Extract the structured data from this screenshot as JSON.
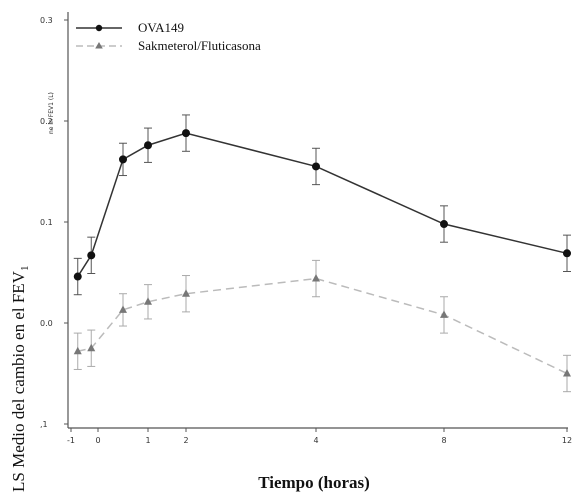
{
  "chart_data": {
    "type": "line",
    "title": "",
    "xlabel": "Tiempo (horas)",
    "ylabel": "LS Medio del cambio en el FEV",
    "ylabel_subscript": "1",
    "secondary_ylabel": "ne in FEV1 (L)",
    "x_ticks": [
      -1,
      0,
      1,
      2,
      4,
      8,
      12
    ],
    "x_tick_labels": [
      "-1",
      "0",
      "1",
      "2",
      "4",
      "8",
      "12"
    ],
    "y_ticks": [
      -0.1,
      0.0,
      0.1,
      0.2,
      0.3
    ],
    "y_tick_labels": [
      ",1",
      "0.0",
      "0.1",
      "0.2",
      "0.3"
    ],
    "xlim": [
      -1,
      12
    ],
    "ylim": [
      -0.1,
      0.3
    ],
    "grid": false,
    "legend_position": "top-left",
    "series": [
      {
        "name": "OVA149",
        "color": "#333333",
        "marker": "circle",
        "line_style": "solid",
        "x": [
          -0.75,
          -0.25,
          0.5,
          1,
          2,
          4,
          8,
          12
        ],
        "y": [
          0.046,
          0.067,
          0.162,
          0.176,
          0.188,
          0.155,
          0.098,
          0.069
        ],
        "err": [
          0.018,
          0.018,
          0.016,
          0.017,
          0.018,
          0.018,
          0.018,
          0.018
        ]
      },
      {
        "name": "Sakmeterol/Fluticasona",
        "color": "#bbbbbb",
        "marker_color": "#777777",
        "marker": "triangle",
        "line_style": "dashed",
        "x": [
          -0.75,
          -0.25,
          0.5,
          1,
          2,
          4,
          8,
          12
        ],
        "y": [
          -0.028,
          -0.025,
          0.013,
          0.021,
          0.029,
          0.044,
          0.008,
          -0.05
        ],
        "err": [
          0.018,
          0.018,
          0.016,
          0.017,
          0.018,
          0.018,
          0.018,
          0.018
        ]
      }
    ]
  }
}
